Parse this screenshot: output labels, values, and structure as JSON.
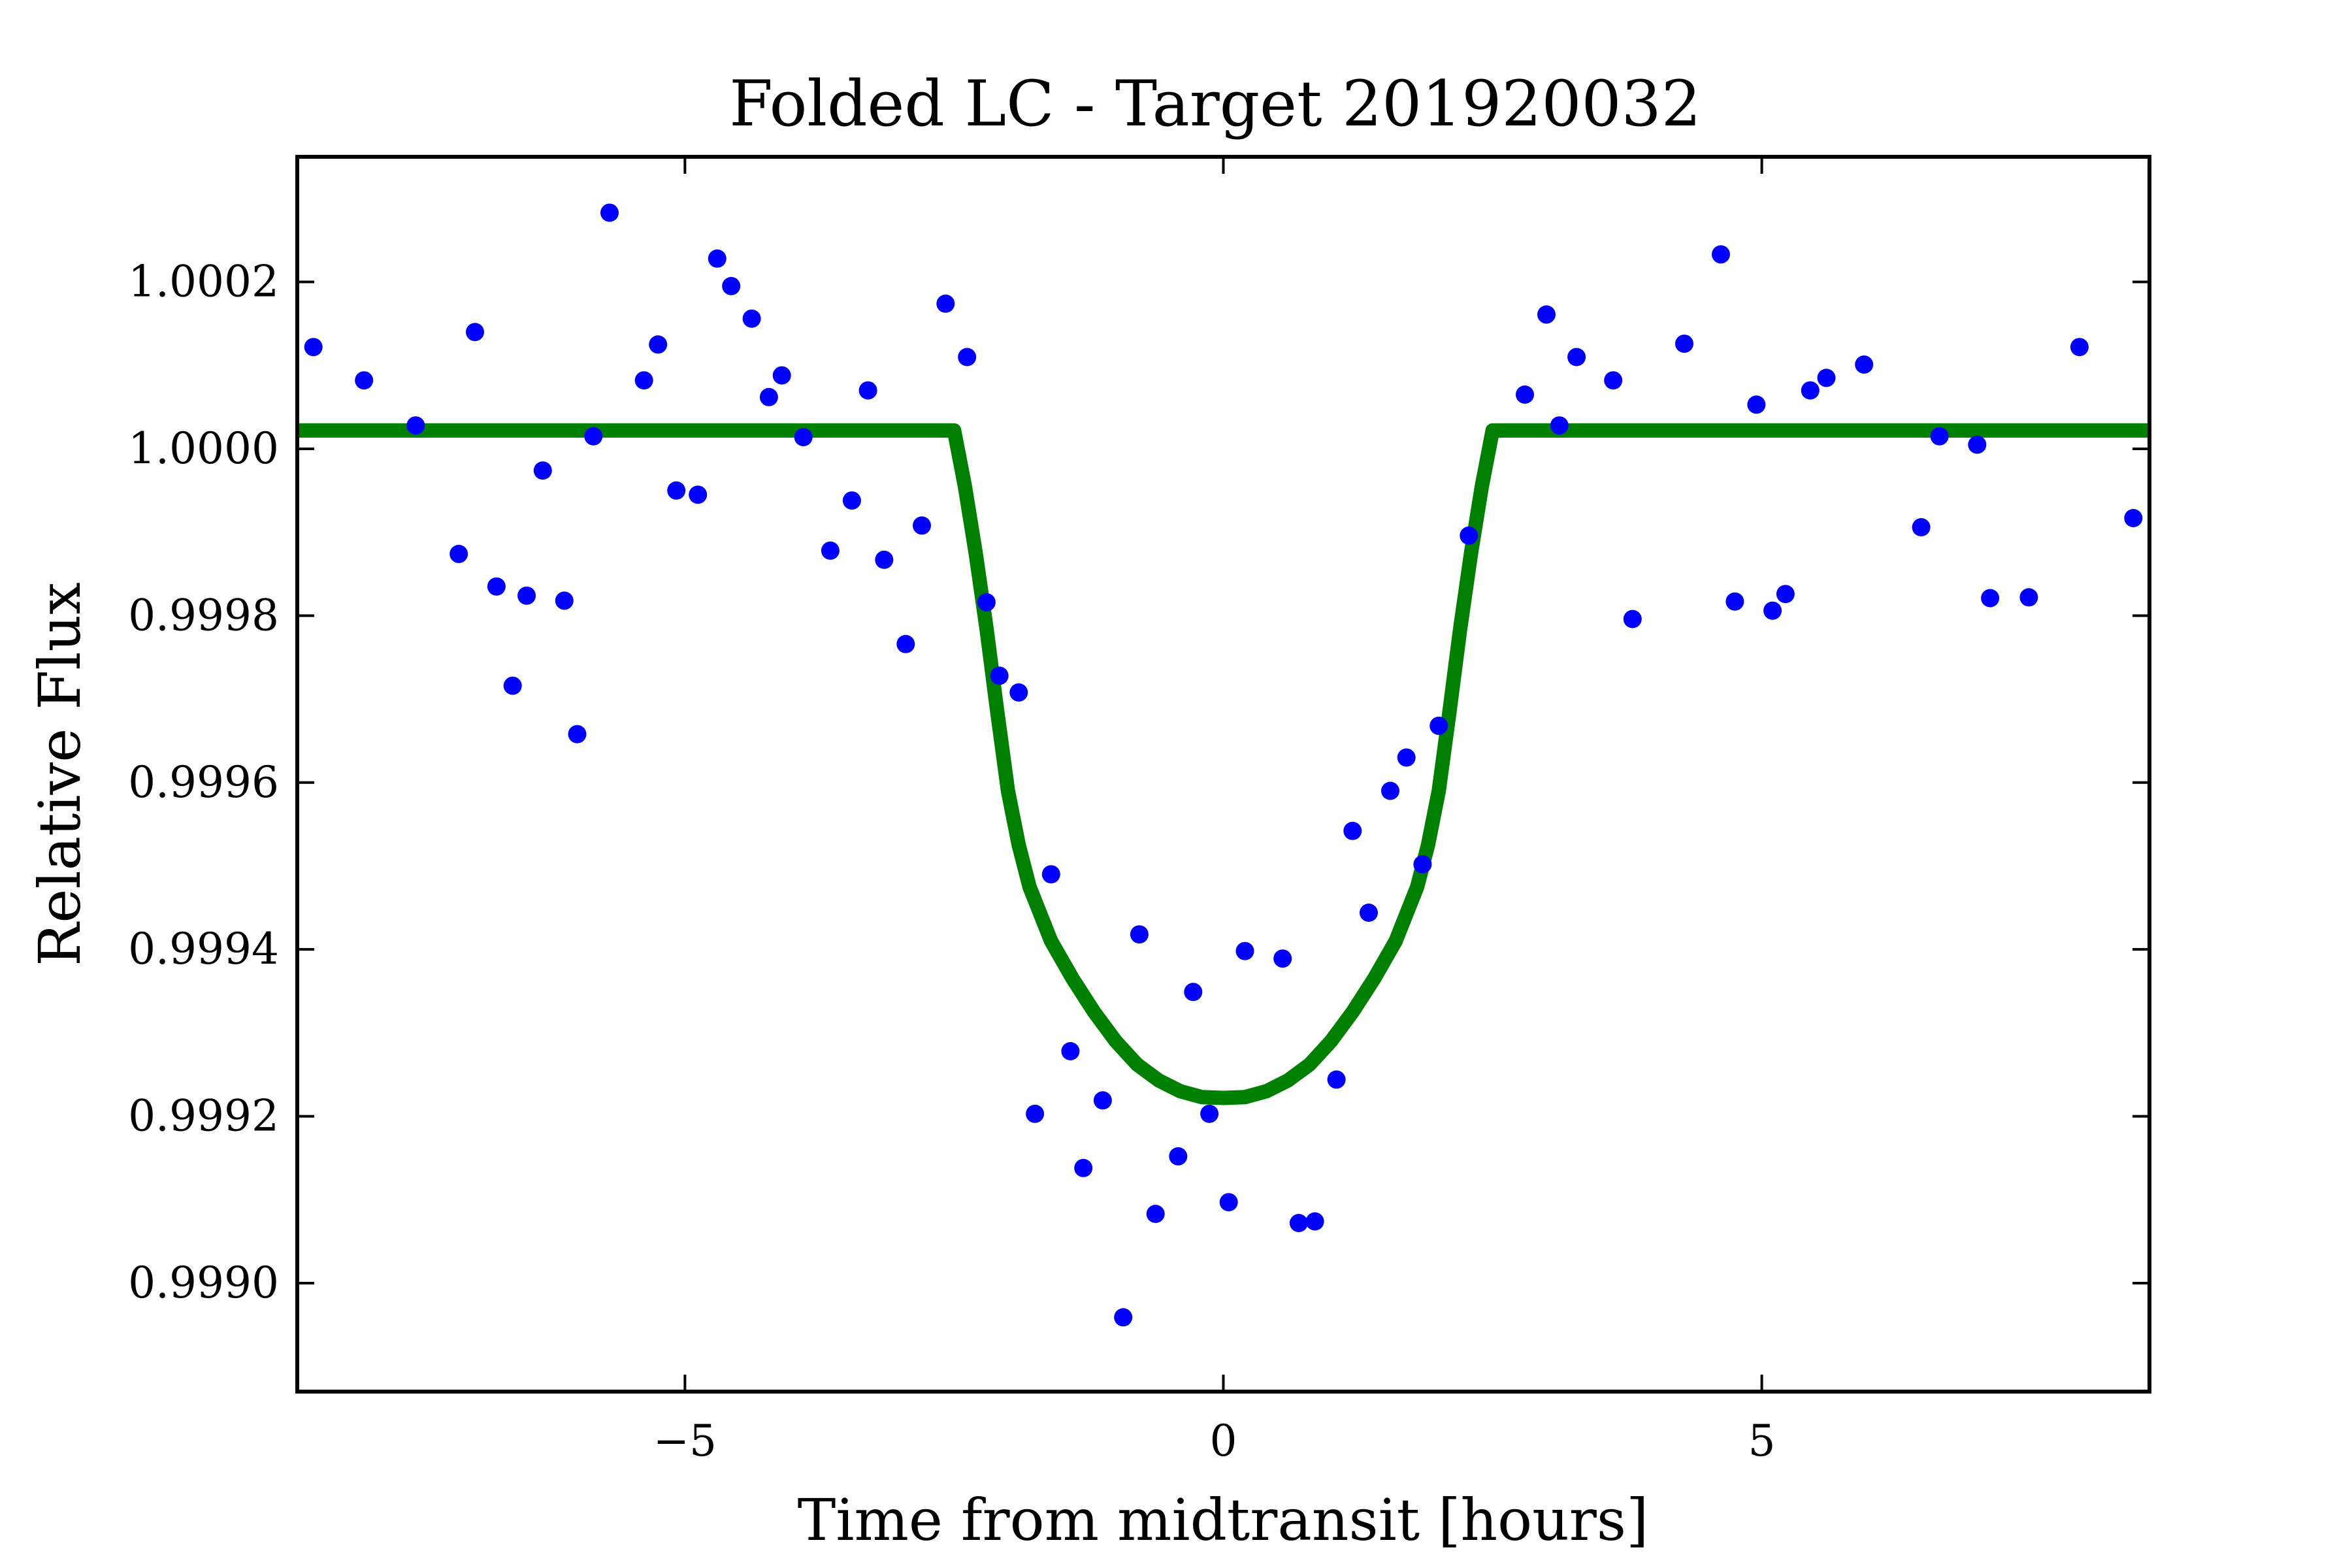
{
  "chart_data": {
    "type": "scatter",
    "title": "Folded LC - Target 201920032",
    "xlabel": "Time from midtransit [hours]",
    "ylabel": "Relative Flux",
    "xlim": [
      -8.6,
      8.6
    ],
    "ylim": [
      0.99887,
      1.00035
    ],
    "x_ticks": [
      -5,
      0,
      5
    ],
    "x_tick_labels": [
      "−5",
      "0",
      "5"
    ],
    "y_ticks": [
      0.999,
      0.9992,
      0.9994,
      0.9996,
      0.9998,
      1.0,
      1.0002
    ],
    "y_tick_labels": [
      "0.9990",
      "0.9992",
      "0.9994",
      "0.9996",
      "0.9998",
      "1.0000",
      "1.0002"
    ],
    "grid": false,
    "colors": {
      "points": "#0000ff",
      "model": "#008000",
      "frame": "#000000"
    },
    "series": [
      {
        "kind": "points",
        "x": [
          -8.45,
          -7.98,
          -7.5,
          -7.1,
          -6.95,
          -6.75,
          -6.6,
          -6.47,
          -6.32,
          -6.12,
          -6.0,
          -5.85,
          -5.7,
          -5.38,
          -5.25,
          -5.08,
          -4.88,
          -4.7,
          -4.57,
          -4.38,
          -4.22,
          -4.1,
          -3.9,
          -3.65,
          -3.45,
          -3.3,
          -3.15,
          -2.95,
          -2.8,
          -2.58,
          -2.38,
          -2.2,
          -2.08,
          -1.9,
          -1.75,
          -1.6,
          -1.42,
          -1.3,
          -1.12,
          -0.93,
          -0.78,
          -0.63,
          -0.42,
          -0.28,
          -0.13,
          0.05,
          0.2,
          0.55,
          0.7,
          0.85,
          1.05,
          1.2,
          1.35,
          1.55,
          1.7,
          1.85,
          2.0,
          2.28,
          2.8,
          3.0,
          3.12,
          3.28,
          3.62,
          3.8,
          4.28,
          4.62,
          4.75,
          4.95,
          5.1,
          5.22,
          5.45,
          5.6,
          5.95,
          6.48,
          6.65,
          7.0,
          7.12,
          7.48,
          7.95,
          8.45
        ],
        "y": [
          1.000122,
          1.000082,
          1.000028,
          0.999874,
          1.00014,
          0.999835,
          0.999716,
          0.999824,
          0.999974,
          0.999818,
          0.999658,
          1.000015,
          1.000283,
          1.000082,
          1.000125,
          0.99995,
          0.999945,
          1.000228,
          1.000195,
          1.000156,
          1.000062,
          1.000088,
          1.000014,
          0.999878,
          0.999938,
          1.00007,
          0.999867,
          0.999766,
          0.999908,
          1.000174,
          1.00011,
          0.999816,
          0.999728,
          0.999708,
          0.999203,
          0.99949,
          0.999278,
          0.999138,
          0.999219,
          0.998959,
          0.999418,
          0.999083,
          0.999152,
          0.999349,
          0.999203,
          0.999097,
          0.999398,
          0.999389,
          0.999072,
          0.999074,
          0.999244,
          0.999542,
          0.999444,
          0.99959,
          0.99963,
          0.999502,
          0.999668,
          0.999896,
          1.000065,
          1.000161,
          1.000028,
          1.00011,
          1.000082,
          0.999796,
          1.000126,
          1.000233,
          0.999817,
          1.000053,
          0.999806,
          0.999826,
          1.00007,
          1.000085,
          1.000101,
          0.999906,
          1.000015,
          1.000005,
          0.999821,
          0.999822,
          1.000122,
          0.999917
        ]
      },
      {
        "kind": "model",
        "x": [
          -8.6,
          -2.5,
          -2.4,
          -2.3,
          -2.2,
          -2.1,
          -2.0,
          -1.9,
          -1.8,
          -1.6,
          -1.4,
          -1.2,
          -1.0,
          -0.8,
          -0.6,
          -0.4,
          -0.2,
          0.0,
          0.2,
          0.4,
          0.6,
          0.8,
          1.0,
          1.2,
          1.4,
          1.6,
          1.8,
          1.9,
          2.0,
          2.1,
          2.2,
          2.3,
          2.4,
          2.5,
          8.6
        ],
        "y": [
          1.000022,
          1.000022,
          0.999955,
          0.999875,
          0.999785,
          0.999685,
          0.99959,
          0.999525,
          0.999475,
          0.99941,
          0.999365,
          0.999325,
          0.99929,
          0.999262,
          0.999243,
          0.99923,
          0.999223,
          0.999222,
          0.999223,
          0.99923,
          0.999243,
          0.999262,
          0.99929,
          0.999325,
          0.999365,
          0.99941,
          0.999475,
          0.999525,
          0.99959,
          0.999685,
          0.999785,
          0.999875,
          0.999955,
          1.000022,
          1.000022
        ]
      }
    ]
  }
}
